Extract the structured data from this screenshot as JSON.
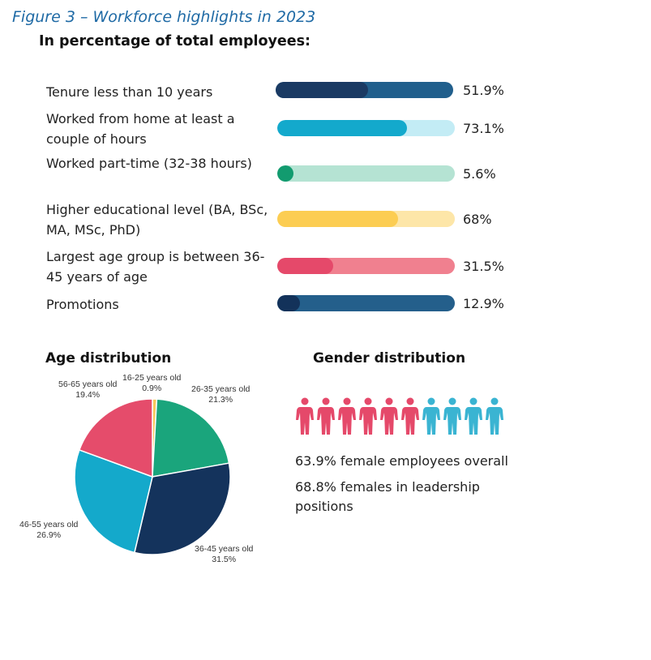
{
  "figure": {
    "title": "Figure 3 – Workforce highlights in 2023",
    "subtitle": "In percentage of total employees:"
  },
  "chart_data": [
    {
      "type": "bar",
      "title": "In percentage of total employees:",
      "categories": [
        "Tenure less than 10 years",
        "Worked from home at least a couple of hours",
        "Worked part-time (32-38 hours)",
        "Higher educational level (BA, BSc, MA, MSc, PhD)",
        "Largest age group is between 36-45 years of age",
        "Promotions"
      ],
      "values": [
        51.9,
        73.1,
        5.6,
        68,
        31.5,
        12.9
      ],
      "value_labels": [
        "51.9%",
        "73.1%",
        "5.6%",
        "68%",
        "31.5%",
        "12.9%"
      ],
      "ylim": [
        0,
        100
      ],
      "colors": [
        {
          "fill": "#1a3a63",
          "track": "#215f8c"
        },
        {
          "fill": "#13a9cc",
          "track": "#c3ecf5"
        },
        {
          "fill": "#129b6f",
          "track": "#b5e3d3"
        },
        {
          "fill": "#fccd52",
          "track": "#fde6a8"
        },
        {
          "fill": "#e5496a",
          "track": "#f0808f"
        },
        {
          "fill": "#13325a",
          "track": "#245f8b"
        }
      ]
    },
    {
      "type": "pie",
      "title": "Age distribution",
      "slices": [
        {
          "label": "16-25 years old",
          "value": 0.9,
          "value_label": "0.9%",
          "color": "#f7c85a"
        },
        {
          "label": "26-35 years old",
          "value": 21.3,
          "value_label": "21.3%",
          "color": "#1aa57c"
        },
        {
          "label": "36-45 years old",
          "value": 31.5,
          "value_label": "31.5%",
          "color": "#14335c"
        },
        {
          "label": "46-55 years old",
          "value": 26.9,
          "value_label": "26.9%",
          "color": "#14a9cb"
        },
        {
          "label": "56-65 years old",
          "value": 19.4,
          "value_label": "19.4%",
          "color": "#e54c6b"
        }
      ]
    }
  ],
  "bar_rows": [
    {
      "label": "Tenure less than 10 years",
      "value": "51.9%"
    },
    {
      "label": "Worked from home at least a couple of hours",
      "value": "73.1%"
    },
    {
      "label": "Worked part-time (32-38 hours)",
      "value": "5.6%"
    },
    {
      "label": "Higher educational level (BA, BSc, MA, MSc, PhD)",
      "value": "68%"
    },
    {
      "label": "Largest age group is between 36-45 years of age",
      "value": "31.5%"
    },
    {
      "label": "Promotions",
      "value": "12.9%"
    }
  ],
  "age": {
    "title": "Age distribution",
    "labels": [
      {
        "name": "16-25 years old",
        "value": "0.9%"
      },
      {
        "name": "26-35 years old",
        "value": "21.3%"
      },
      {
        "name": "36-45 years old",
        "value": "31.5%"
      },
      {
        "name": "46-55 years old",
        "value": "26.9%"
      },
      {
        "name": "56-65 years old",
        "value": "19.4%"
      }
    ]
  },
  "gender": {
    "title": "Gender distribution",
    "female_icons": 6,
    "male_icons": 4,
    "female_color": "#e5496a",
    "male_color": "#3ab4d2",
    "stat1": "63.9%  female employees overall",
    "stat2": "68.8%  females in leadership positions"
  }
}
